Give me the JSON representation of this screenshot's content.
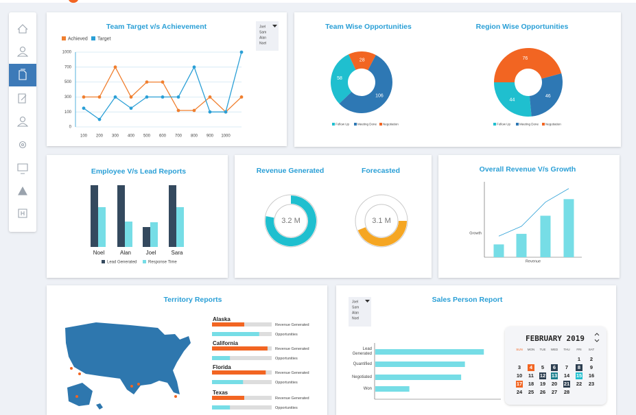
{
  "chart_data": [
    {
      "type": "line",
      "title": "Team Target v/s Achievement",
      "categories": [
        "100",
        "200",
        "300",
        "400",
        "500",
        "600",
        "700",
        "800",
        "900",
        "1000",
        null
      ],
      "series": [
        {
          "name": "Achieved",
          "color": "#f07f2f",
          "values": [
            300,
            300,
            700,
            300,
            500,
            500,
            120,
            120,
            300,
            100,
            300
          ]
        },
        {
          "name": "Target",
          "color": "#2a9fd6",
          "values": [
            150,
            50,
            300,
            150,
            300,
            300,
            300,
            700,
            100,
            100,
            1000
          ]
        }
      ],
      "ylim": [
        0,
        1000
      ],
      "yticks": [
        0,
        100,
        300,
        500,
        700,
        1000
      ],
      "grid": true,
      "dropdown": [
        "Joel",
        "Sam",
        "Alan",
        "Noel"
      ]
    },
    {
      "type": "pie",
      "title": "Team Wise Opportunities",
      "donut": true,
      "categories": [
        "Follow Up",
        "Meeting Done",
        "Negotiation"
      ],
      "values": [
        58,
        106,
        28
      ],
      "colors": [
        "#1fbfcf",
        "#2e78b4",
        "#f26522"
      ]
    },
    {
      "type": "pie",
      "title": "Region Wise Opportunities",
      "donut": true,
      "categories": [
        "Follow Up",
        "Meeting Done",
        "Negotiation"
      ],
      "values": [
        44,
        46,
        76
      ],
      "colors": [
        "#1fbfcf",
        "#2e78b4",
        "#f26522"
      ]
    },
    {
      "type": "bar",
      "title": "Employee V/s Lead Reports",
      "categories": [
        "Noel",
        "Alan",
        "Joel",
        "Sara"
      ],
      "series": [
        {
          "name": "Lead Generated",
          "color": "#34495e",
          "values": [
            90,
            90,
            29,
            90
          ]
        },
        {
          "name": "Response Time",
          "color": "#76dde6",
          "values": [
            58,
            37,
            36,
            58
          ]
        }
      ],
      "ylim": [
        0,
        100
      ]
    },
    {
      "type": "gauge",
      "categories": [
        "Revenue Generated",
        "Forecasted"
      ],
      "values": [
        3.2,
        3.1
      ],
      "value_labels": [
        "3.2 M",
        "3.1 M"
      ],
      "progress": [
        78,
        44
      ],
      "colors": [
        "#1fbfcf",
        "#f5a623"
      ],
      "ylim": [
        0,
        100
      ]
    },
    {
      "type": "combo",
      "title": "Overall Revenue V/s Growth",
      "y_label": "Growth",
      "x_label": "Revenue",
      "series": [
        {
          "type": "bar",
          "color": "#76dde6",
          "values": [
            17,
            31,
            55,
            77
          ]
        },
        {
          "type": "line",
          "color": "#2a9fd6",
          "values": [
            28,
            41,
            73,
            91
          ]
        }
      ],
      "ylim": [
        0,
        100
      ]
    },
    {
      "type": "progress",
      "title": "Territory Reports",
      "categories": [
        "Alaska",
        "California",
        "Florida",
        "Texas"
      ],
      "series": [
        {
          "name": "Revenue Generated",
          "color": "#f26522",
          "values": [
            54,
            93,
            90,
            54
          ]
        },
        {
          "name": "Opportunities",
          "color": "#76dde6",
          "values": [
            79,
            30,
            52,
            30
          ]
        }
      ],
      "xlim": [
        0,
        100
      ]
    },
    {
      "type": "hbar",
      "title": "Sales Person Report",
      "categories": [
        "Lead Generated",
        "Quantified",
        "Negotiated",
        "Won"
      ],
      "values": [
        86,
        71,
        68,
        27
      ],
      "color": "#76dde6",
      "xlim": [
        0,
        100
      ],
      "dropdown": [
        "Joel",
        "Sam",
        "Alan",
        "Noel"
      ]
    }
  ],
  "calendar": {
    "title": "FEBRUARY 2019",
    "weekdays": [
      "SUN",
      "MON",
      "TUE",
      "WED",
      "THU",
      "FRI",
      "SAT"
    ],
    "weeks": [
      [
        null,
        null,
        null,
        null,
        null,
        1,
        2
      ],
      [
        3,
        4,
        5,
        6,
        7,
        8,
        9
      ],
      [
        10,
        11,
        12,
        13,
        14,
        15,
        16
      ],
      [
        17,
        18,
        19,
        20,
        21,
        22,
        23
      ],
      [
        24,
        25,
        26,
        27,
        28
      ]
    ],
    "highlights": [
      {
        "day": 4,
        "color": "#f26522"
      },
      {
        "day": 6,
        "color": "#2c3e50"
      },
      {
        "day": 8,
        "color": "#2c3e50"
      },
      {
        "day": 12,
        "color": "#2c3e50"
      },
      {
        "day": 13,
        "color": "#1a7f8e"
      },
      {
        "day": 15,
        "color": "#1fbfcf"
      },
      {
        "day": 17,
        "color": "#f26522"
      },
      {
        "day": 21,
        "color": "#2c3e50"
      }
    ]
  }
}
